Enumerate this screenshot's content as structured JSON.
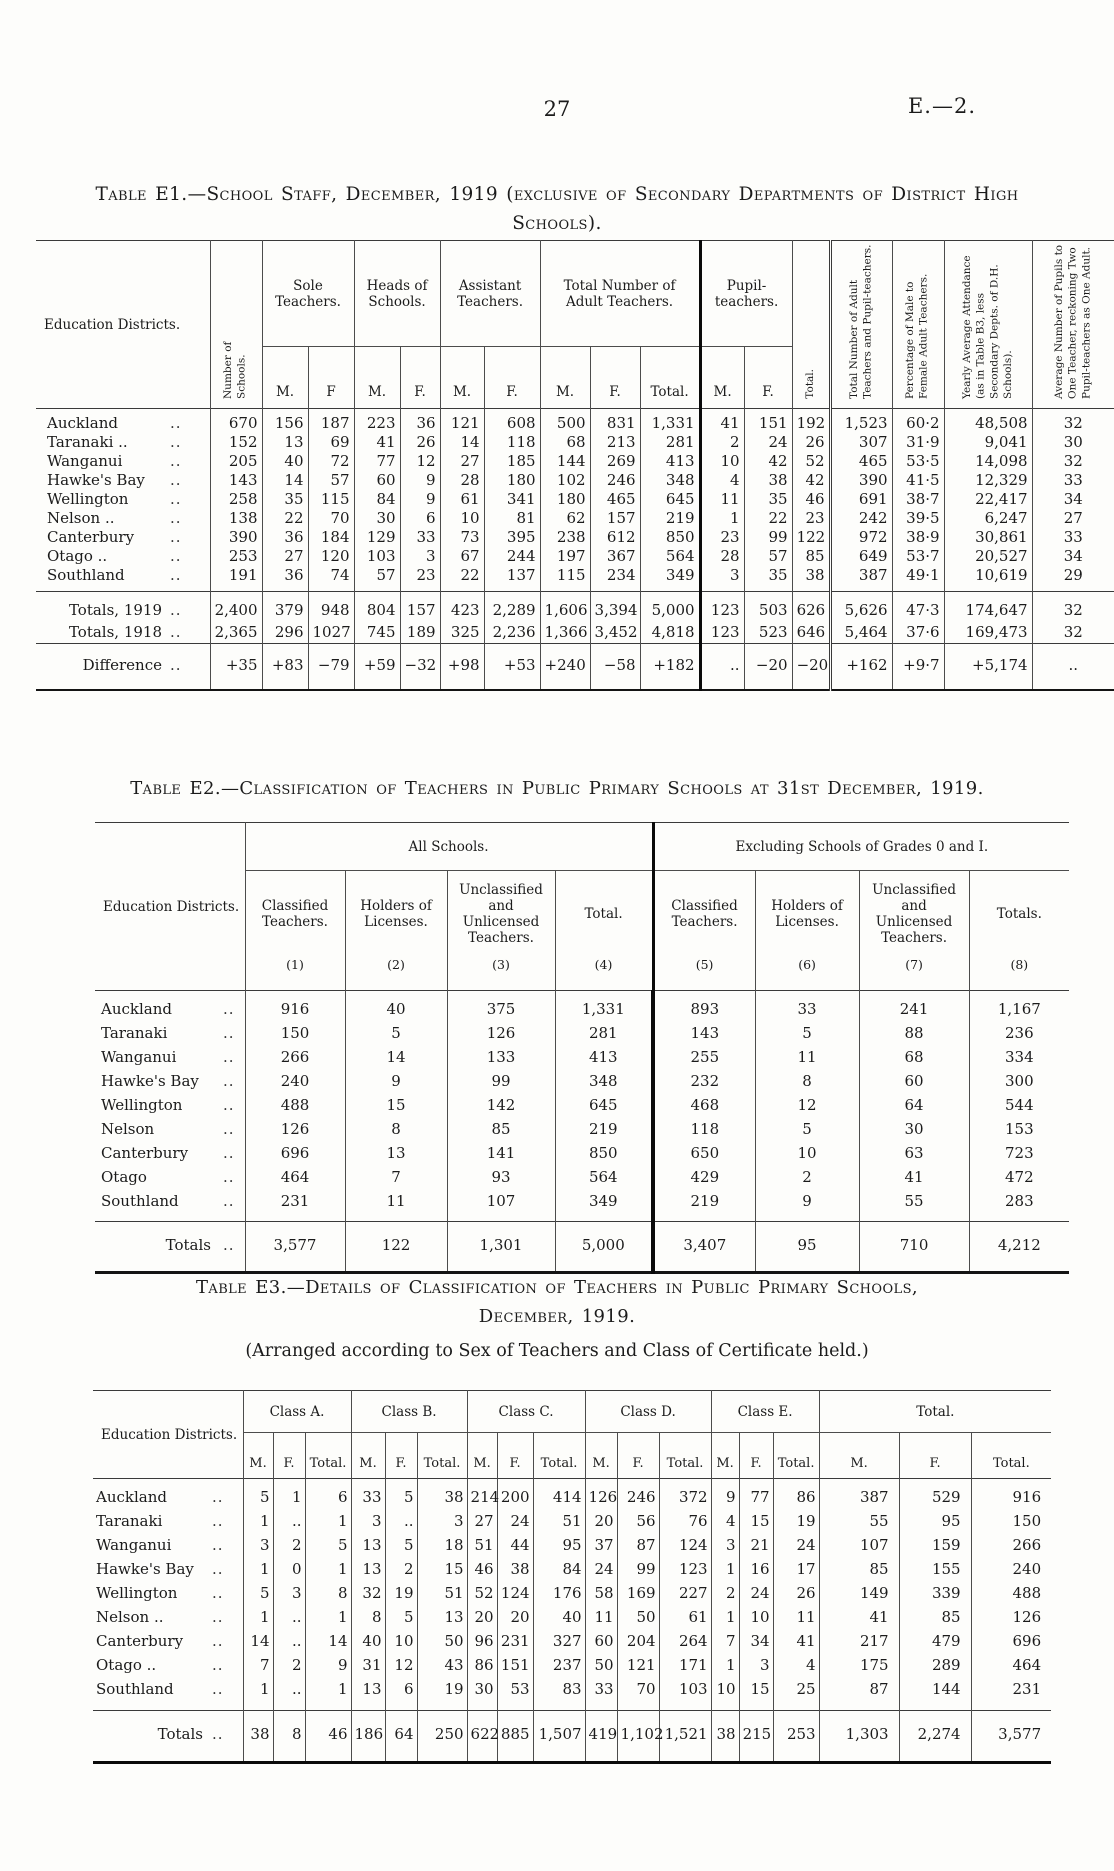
{
  "page": {
    "number": "27",
    "doc_ref": "E.—2."
  },
  "e1": {
    "title": "Table E1.—School Staff, December, 1919 (exclusive of Secondary Departments of District High Schools).",
    "headers": {
      "education_districts": "Education Districts.",
      "number_of_schools": "Number of Schools.",
      "sole_teachers": "Sole Teachers.",
      "heads_of_schools": "Heads of Schools.",
      "assistant_teachers": "Assistant Teachers.",
      "total_adult_teachers": "Total Number of Adult Teachers.",
      "pupil_teachers": "Pupil-teachers.",
      "m": "M.",
      "f_no_dot": "F",
      "f": "F.",
      "total": "Total.",
      "total_rot": "Total.",
      "adult_and_pupil": "Total Number of Adult Teachers and Pupil-teachers.",
      "percentage": "Percentage of Male to Female Adult Teachers.",
      "attendance": "Yearly Average Attendance (as in Table B3, less Secondary Depts. of D.H. Schools).",
      "avg_pupils": "Average Number of Pupils to One Teacher, reckoning Two Pupil-teachers as One Adult."
    },
    "rows": [
      [
        "Auckland",
        "..",
        "670",
        "156",
        "187",
        "223",
        "36",
        "121",
        "608",
        "500",
        "831",
        "1,331",
        "41",
        "151",
        "192",
        "1,523",
        "60·2",
        "48,508",
        "32"
      ],
      [
        "Taranaki ..",
        "..",
        "152",
        "13",
        "69",
        "41",
        "26",
        "14",
        "118",
        "68",
        "213",
        "281",
        "2",
        "24",
        "26",
        "307",
        "31·9",
        "9,041",
        "30"
      ],
      [
        "Wanganui",
        "..",
        "205",
        "40",
        "72",
        "77",
        "12",
        "27",
        "185",
        "144",
        "269",
        "413",
        "10",
        "42",
        "52",
        "465",
        "53·5",
        "14,098",
        "32"
      ],
      [
        "Hawke's Bay",
        "..",
        "143",
        "14",
        "57",
        "60",
        "9",
        "28",
        "180",
        "102",
        "246",
        "348",
        "4",
        "38",
        "42",
        "390",
        "41·5",
        "12,329",
        "33"
      ],
      [
        "Wellington",
        "..",
        "258",
        "35",
        "115",
        "84",
        "9",
        "61",
        "341",
        "180",
        "465",
        "645",
        "11",
        "35",
        "46",
        "691",
        "38·7",
        "22,417",
        "34"
      ],
      [
        "Nelson ..",
        "..",
        "138",
        "22",
        "70",
        "30",
        "6",
        "10",
        "81",
        "62",
        "157",
        "219",
        "1",
        "22",
        "23",
        "242",
        "39·5",
        "6,247",
        "27"
      ],
      [
        "Canterbury",
        "..",
        "390",
        "36",
        "184",
        "129",
        "33",
        "73",
        "395",
        "238",
        "612",
        "850",
        "23",
        "99",
        "122",
        "972",
        "38·9",
        "30,861",
        "33"
      ],
      [
        "Otago ..",
        "..",
        "253",
        "27",
        "120",
        "103",
        "3",
        "67",
        "244",
        "197",
        "367",
        "564",
        "28",
        "57",
        "85",
        "649",
        "53·7",
        "20,527",
        "34"
      ],
      [
        "Southland",
        "..",
        "191",
        "36",
        "74",
        "57",
        "23",
        "22",
        "137",
        "115",
        "234",
        "349",
        "3",
        "35",
        "38",
        "387",
        "49·1",
        "10,619",
        "29"
      ]
    ],
    "totals_rows": [
      [
        "Totals, 1919",
        "..",
        "2,400",
        "379",
        "948",
        "804",
        "157",
        "423",
        "2,289",
        "1,606",
        "3,394",
        "5,000",
        "123",
        "503",
        "626",
        "5,626",
        "47·3",
        "174,647",
        "32"
      ],
      [
        "Totals, 1918",
        "..",
        "2,365",
        "296",
        "1027",
        "745",
        "189",
        "325",
        "2,236",
        "1,366",
        "3,452",
        "4,818",
        "123",
        "523",
        "646",
        "5,464",
        "37·6",
        "169,473",
        "32"
      ]
    ],
    "difference_rows": [
      [
        "Difference",
        "..",
        "+35",
        "+83",
        "−79",
        "+59",
        "−32",
        "+98",
        "+53",
        "+240",
        "−58",
        "+182",
        "..",
        "−20",
        "−20",
        "+162",
        "+9·7",
        "+5,174",
        ".."
      ]
    ]
  },
  "e2": {
    "title": "Table E2.—Classification of Teachers in Public Primary Schools at 31st December, 1919.",
    "headers": {
      "education_districts": "Education Districts.",
      "all_schools": "All Schools.",
      "excluding": "Excluding Schools of Grades 0 and I.",
      "classified": "Classified Teachers.",
      "holders": "Holders of Licenses.",
      "unclassified": "Unclassified and Unlicensed Teachers.",
      "total": "Total.",
      "totals": "Totals.",
      "col_numbers": [
        "(1)",
        "(2)",
        "(3)",
        "(4)",
        "(5)",
        "(6)",
        "(7)",
        "(8)"
      ]
    },
    "rows": [
      [
        "Auckland",
        "..",
        "916",
        "40",
        "375",
        "1,331",
        "893",
        "33",
        "241",
        "1,167"
      ],
      [
        "Taranaki",
        "..",
        "150",
        "5",
        "126",
        "281",
        "143",
        "5",
        "88",
        "236"
      ],
      [
        "Wanganui",
        "..",
        "266",
        "14",
        "133",
        "413",
        "255",
        "11",
        "68",
        "334"
      ],
      [
        "Hawke's Bay",
        "..",
        "240",
        "9",
        "99",
        "348",
        "232",
        "8",
        "60",
        "300"
      ],
      [
        "Wellington",
        "..",
        "488",
        "15",
        "142",
        "645",
        "468",
        "12",
        "64",
        "544"
      ],
      [
        "Nelson",
        "..",
        "126",
        "8",
        "85",
        "219",
        "118",
        "5",
        "30",
        "153"
      ],
      [
        "Canterbury",
        "..",
        "696",
        "13",
        "141",
        "850",
        "650",
        "10",
        "63",
        "723"
      ],
      [
        "Otago",
        "..",
        "464",
        "7",
        "93",
        "564",
        "429",
        "2",
        "41",
        "472"
      ],
      [
        "Southland",
        "..",
        "231",
        "11",
        "107",
        "349",
        "219",
        "9",
        "55",
        "283"
      ]
    ],
    "totals_rows": [
      [
        "Totals",
        "..",
        "3,577",
        "122",
        "1,301",
        "5,000",
        "3,407",
        "95",
        "710",
        "4,212"
      ]
    ]
  },
  "e3": {
    "title": "Table E3.—Details of Classification of Teachers in Public Primary Schools, December, 1919.",
    "subtitle": "(Arranged according to Sex of Teachers and Class of Certificate held.)",
    "headers": {
      "education_districts": "Education Districts.",
      "class_a": "Class A.",
      "class_b": "Class B.",
      "class_c": "Class C.",
      "class_d": "Class D.",
      "class_e": "Class E.",
      "total": "Total.",
      "m": "M.",
      "f": "F.",
      "total_sub": "Total."
    },
    "rows": [
      [
        "Auckland",
        "..",
        "5",
        "1",
        "6",
        "33",
        "5",
        "38",
        "214",
        "200",
        "414",
        "126",
        "246",
        "372",
        "9",
        "77",
        "86",
        "387",
        "529",
        "916"
      ],
      [
        "Taranaki",
        "..",
        "1",
        "..",
        "1",
        "3",
        "..",
        "3",
        "27",
        "24",
        "51",
        "20",
        "56",
        "76",
        "4",
        "15",
        "19",
        "55",
        "95",
        "150"
      ],
      [
        "Wanganui",
        "..",
        "3",
        "2",
        "5",
        "13",
        "5",
        "18",
        "51",
        "44",
        "95",
        "37",
        "87",
        "124",
        "3",
        "21",
        "24",
        "107",
        "159",
        "266"
      ],
      [
        "Hawke's Bay",
        "..",
        "1",
        "0",
        "1",
        "13",
        "2",
        "15",
        "46",
        "38",
        "84",
        "24",
        "99",
        "123",
        "1",
        "16",
        "17",
        "85",
        "155",
        "240"
      ],
      [
        "Wellington",
        "..",
        "5",
        "3",
        "8",
        "32",
        "19",
        "51",
        "52",
        "124",
        "176",
        "58",
        "169",
        "227",
        "2",
        "24",
        "26",
        "149",
        "339",
        "488"
      ],
      [
        "Nelson ..",
        "..",
        "1",
        "..",
        "1",
        "8",
        "5",
        "13",
        "20",
        "20",
        "40",
        "11",
        "50",
        "61",
        "1",
        "10",
        "11",
        "41",
        "85",
        "126"
      ],
      [
        "Canterbury",
        "..",
        "14",
        "..",
        "14",
        "40",
        "10",
        "50",
        "96",
        "231",
        "327",
        "60",
        "204",
        "264",
        "7",
        "34",
        "41",
        "217",
        "479",
        "696"
      ],
      [
        "Otago ..",
        "..",
        "7",
        "2",
        "9",
        "31",
        "12",
        "43",
        "86",
        "151",
        "237",
        "50",
        "121",
        "171",
        "1",
        "3",
        "4",
        "175",
        "289",
        "464"
      ],
      [
        "Southland",
        "..",
        "1",
        "..",
        "1",
        "13",
        "6",
        "19",
        "30",
        "53",
        "83",
        "33",
        "70",
        "103",
        "10",
        "15",
        "25",
        "87",
        "144",
        "231"
      ]
    ],
    "totals_rows": [
      [
        "Totals",
        "..",
        "38",
        "8",
        "46",
        "186",
        "64",
        "250",
        "622",
        "885",
        "1,507",
        "419",
        "1,102",
        "1,521",
        "38",
        "215",
        "253",
        "1,303",
        "2,274",
        "3,577"
      ]
    ]
  }
}
